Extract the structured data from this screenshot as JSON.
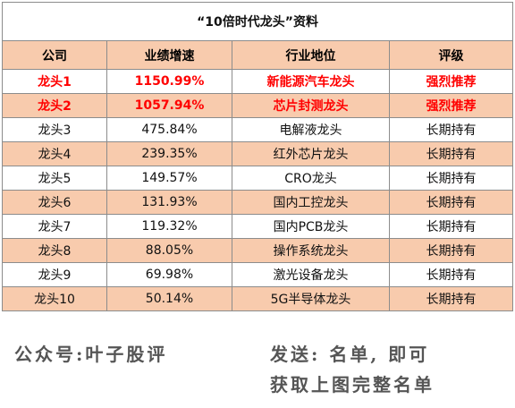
{
  "title": "“10倍时代龙头”资料",
  "headers": [
    "公司",
    "业绩增速",
    "行业地位",
    "评级"
  ],
  "rows": [
    {
      "company": "龙头1",
      "growth": "1150.99%",
      "position": "新能源汽车龙头",
      "rating": "强烈推荐"
    },
    {
      "company": "龙头2",
      "growth": "1057.94%",
      "position": "芯片封测龙头",
      "rating": "强烈推荐"
    },
    {
      "company": "龙头3",
      "growth": "475.84%",
      "position": "电解液龙头",
      "rating": "长期持有"
    },
    {
      "company": "龙头4",
      "growth": "239.35%",
      "position": "红外芯片龙头",
      "rating": "长期持有"
    },
    {
      "company": "龙头5",
      "growth": "149.57%",
      "position": "CRO龙头",
      "rating": "长期持有"
    },
    {
      "company": "龙头6",
      "growth": "131.93%",
      "position": "国内工控龙头",
      "rating": "长期持有"
    },
    {
      "company": "龙头7",
      "growth": "119.32%",
      "position": "国内PCB龙头",
      "rating": "长期持有"
    },
    {
      "company": "龙头8",
      "growth": "88.05%",
      "position": "操作系统龙头",
      "rating": "长期持有"
    },
    {
      "company": "龙头9",
      "growth": "69.98%",
      "position": "激光设备龙头",
      "rating": "长期持有"
    },
    {
      "company": "龙头10",
      "growth": "50.14%",
      "position": "5G半导体龙头",
      "rating": "长期持有"
    }
  ],
  "footer": {
    "left": "公众号:叶子股评",
    "right_line1": "发送: 名单, 即可",
    "right_line2": "获取上图完整名单"
  },
  "colors": {
    "header_bg": "#f8cbad",
    "highlight_text": "#ff0000",
    "footer_text": "#555555"
  }
}
